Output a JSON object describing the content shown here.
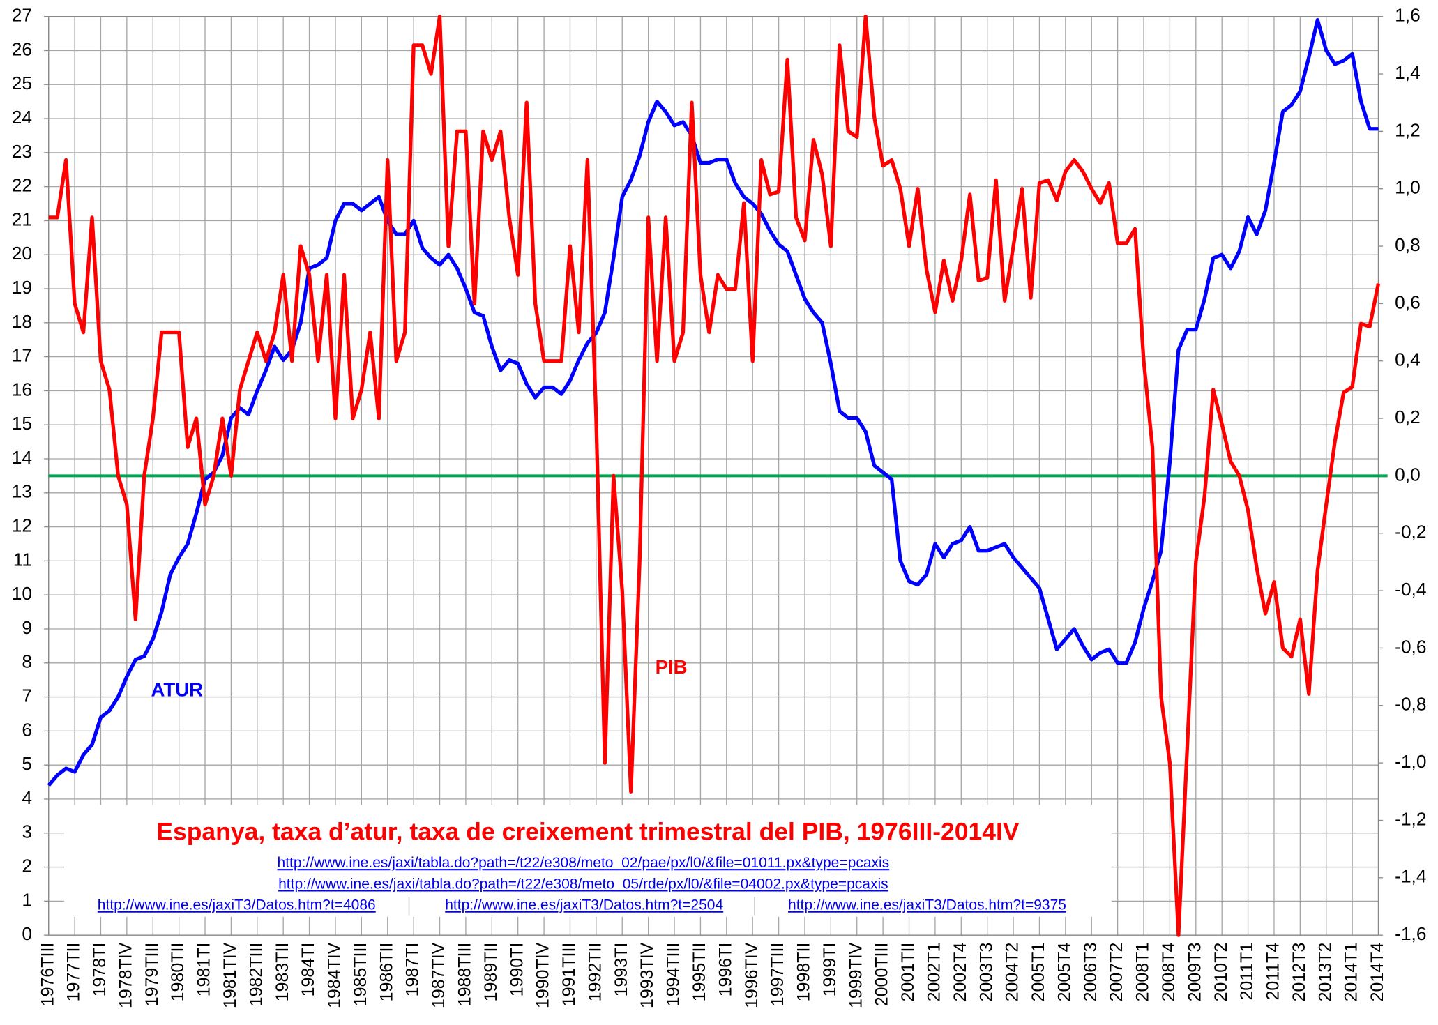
{
  "chart_data": {
    "type": "line",
    "title": "Espanya, taxa d’atur, taxa de creixement trimestral del PIB, 1976III-2014IV",
    "sources": [
      "http://www.ine.es/jaxi/tabla.do?path=/t22/e308/meto_02/pae/px/l0/&file=01011.px&type=pcaxis",
      "http://www.ine.es/jaxi/tabla.do?path=/t22/e308/meto_05/rde/px/l0/&file=04002.px&type=pcaxis",
      "http://www.ine.es/jaxiT3/Datos.htm?t=4086",
      "http://www.ine.es/jaxiT3/Datos.htm?t=2504",
      "http://www.ine.es/jaxiT3/Datos.htm?t=9375"
    ],
    "annotations": [
      {
        "text": "ATUR",
        "series": 0
      },
      {
        "text": "PIB",
        "series": 1
      }
    ],
    "categories": [
      "1976TIII",
      null,
      null,
      "1977TII",
      null,
      null,
      "1978TI",
      null,
      null,
      "1978TIV",
      null,
      null,
      "1979TIII",
      null,
      null,
      "1980TII",
      null,
      null,
      "1981TI",
      null,
      null,
      "1981TIV",
      null,
      null,
      "1982TIII",
      null,
      null,
      "1983TII",
      null,
      null,
      "1984TI",
      null,
      null,
      "1984TIV",
      null,
      null,
      "1985TIII",
      null,
      null,
      "1986TII",
      null,
      null,
      "1987TI",
      null,
      null,
      "1987TIV",
      null,
      null,
      "1988TIII",
      null,
      null,
      "1989TII",
      null,
      null,
      "1990TI",
      null,
      null,
      "1990TIV",
      null,
      null,
      "1991TIII",
      null,
      null,
      "1992TII",
      null,
      null,
      "1993TI",
      null,
      null,
      "1993TIV",
      null,
      null,
      "1994TIII",
      null,
      null,
      "1995TII",
      null,
      null,
      "1996TI",
      null,
      null,
      "1996TIV",
      null,
      null,
      "1997TIII",
      null,
      null,
      "1998TII",
      null,
      null,
      "1999TI",
      null,
      null,
      "1999TIV",
      null,
      null,
      "2000TIII",
      null,
      null,
      "2001TII",
      null,
      null,
      "2002T1",
      null,
      null,
      "2002T4",
      null,
      null,
      "2003T3",
      null,
      null,
      "2004T2",
      null,
      null,
      "2005T1",
      null,
      null,
      "2005T4",
      null,
      null,
      "2006T3",
      null,
      null,
      "2007T2",
      null,
      null,
      "2008T1",
      null,
      null,
      "2008T4",
      null,
      null,
      "2009T3",
      null,
      null,
      "2010T2",
      null,
      null,
      "2011T1",
      null,
      null,
      "2011T4",
      null,
      null,
      "2012T3",
      null,
      null,
      "2013T2",
      null,
      null,
      "2014T1",
      null,
      null,
      "2014T4"
    ],
    "series": [
      {
        "name": "ATUR",
        "color": "#0000ff",
        "axis": "y",
        "values": [
          4.4,
          4.7,
          4.9,
          4.8,
          5.3,
          5.6,
          6.4,
          6.6,
          7.0,
          7.6,
          8.1,
          8.2,
          8.7,
          9.5,
          10.6,
          11.1,
          11.5,
          12.4,
          13.4,
          13.6,
          14.1,
          15.2,
          15.5,
          15.3,
          16.0,
          16.6,
          17.3,
          16.9,
          17.2,
          18.0,
          19.6,
          19.7,
          19.9,
          21.0,
          21.5,
          21.5,
          21.3,
          21.5,
          21.7,
          21.0,
          20.6,
          20.6,
          21.0,
          20.2,
          19.9,
          19.7,
          20.0,
          19.6,
          19.0,
          18.3,
          18.2,
          17.3,
          16.6,
          16.9,
          16.8,
          16.2,
          15.8,
          16.1,
          16.1,
          15.9,
          16.3,
          16.9,
          17.4,
          17.7,
          18.3,
          19.9,
          21.7,
          22.2,
          22.9,
          23.9,
          24.5,
          24.2,
          23.8,
          23.9,
          23.5,
          22.7,
          22.7,
          22.8,
          22.8,
          22.1,
          21.7,
          21.5,
          21.2,
          20.7,
          20.3,
          20.1,
          19.4,
          18.7,
          18.3,
          18.0,
          16.8,
          15.4,
          15.2,
          15.2,
          14.8,
          13.8,
          13.6,
          13.4,
          11.0,
          10.4,
          10.3,
          10.6,
          11.5,
          11.1,
          11.5,
          11.6,
          12.0,
          11.3,
          11.3,
          11.4,
          11.5,
          11.1,
          10.8,
          10.5,
          10.2,
          9.3,
          8.4,
          8.7,
          9.0,
          8.5,
          8.1,
          8.3,
          8.4,
          8.0,
          8.0,
          8.6,
          9.6,
          10.4,
          11.3,
          13.9,
          17.2,
          17.8,
          17.8,
          18.7,
          19.9,
          20.0,
          19.6,
          20.1,
          21.1,
          20.6,
          21.3,
          22.7,
          24.2,
          24.4,
          24.8,
          25.8,
          26.9,
          26.0,
          25.6,
          25.7,
          25.9,
          24.5,
          23.7,
          23.7
        ]
      },
      {
        "name": "PIB",
        "color": "#ff0000",
        "axis": "y2",
        "values": [
          0.9,
          0.9,
          1.1,
          0.6,
          0.5,
          0.9,
          0.4,
          0.3,
          0.0,
          -0.1,
          -0.5,
          0.0,
          0.2,
          0.5,
          0.5,
          0.5,
          0.1,
          0.2,
          -0.1,
          0.0,
          0.2,
          0.0,
          0.3,
          0.4,
          0.5,
          0.4,
          0.5,
          0.7,
          0.4,
          0.8,
          0.7,
          0.4,
          0.7,
          0.2,
          0.7,
          0.2,
          0.3,
          0.5,
          0.2,
          1.1,
          0.4,
          0.5,
          1.5,
          1.5,
          1.4,
          1.6,
          0.8,
          1.2,
          1.2,
          0.6,
          1.2,
          1.1,
          1.2,
          0.9,
          0.7,
          1.3,
          0.6,
          0.4,
          0.4,
          0.4,
          0.8,
          0.5,
          1.1,
          0.2,
          -1.0,
          0.0,
          -0.4,
          -1.1,
          -0.3,
          0.9,
          0.4,
          0.9,
          0.4,
          0.5,
          1.3,
          0.7,
          0.5,
          0.7,
          0.65,
          0.65,
          0.95,
          0.4,
          1.1,
          0.98,
          0.99,
          1.45,
          0.9,
          0.82,
          1.17,
          1.05,
          0.8,
          1.5,
          1.2,
          1.18,
          1.6,
          1.25,
          1.08,
          1.1,
          1.0,
          0.8,
          1.0,
          0.72,
          0.57,
          0.75,
          0.61,
          0.75,
          0.98,
          0.68,
          0.69,
          1.03,
          0.61,
          0.8,
          1.0,
          0.62,
          1.02,
          1.03,
          0.96,
          1.06,
          1.1,
          1.06,
          1.0,
          0.95,
          1.02,
          0.81,
          0.81,
          0.86,
          0.4,
          0.1,
          -0.77,
          -1.0,
          -1.6,
          -0.95,
          -0.3,
          -0.07,
          0.3,
          0.18,
          0.05,
          0.0,
          -0.12,
          -0.32,
          -0.48,
          -0.37,
          -0.6,
          -0.63,
          -0.5,
          -0.76,
          -0.33,
          -0.1,
          0.12,
          0.29,
          0.31,
          0.53,
          0.52,
          0.67
        ]
      }
    ],
    "ylim": [
      0,
      27
    ],
    "yticks": [
      0,
      1,
      2,
      3,
      4,
      5,
      6,
      7,
      8,
      9,
      10,
      11,
      12,
      13,
      14,
      15,
      16,
      17,
      18,
      19,
      20,
      21,
      22,
      23,
      24,
      25,
      26,
      27
    ],
    "y2lim": [
      -1.6,
      1.6
    ],
    "y2ticks": [
      {
        "value": -1.6,
        "label": "-1,6"
      },
      {
        "value": -1.4,
        "label": "-1,4"
      },
      {
        "value": -1.2,
        "label": "-1,2"
      },
      {
        "value": -1.0,
        "label": "-1,0"
      },
      {
        "value": -0.8,
        "label": "-0,8"
      },
      {
        "value": -0.6,
        "label": "-0,6"
      },
      {
        "value": -0.4,
        "label": "-0,4"
      },
      {
        "value": -0.2,
        "label": "-0,2"
      },
      {
        "value": 0,
        "label": "0,0"
      },
      {
        "value": 0.2,
        "label": "0,2"
      },
      {
        "value": 0.4,
        "label": "0,4"
      },
      {
        "value": 0.6,
        "label": "0,6"
      },
      {
        "value": 0.8,
        "label": "0,8"
      },
      {
        "value": 1.0,
        "label": "1,0"
      },
      {
        "value": 1.2,
        "label": "1,2"
      },
      {
        "value": 1.4,
        "label": "1,4"
      },
      {
        "value": 1.6,
        "label": "1,6"
      }
    ],
    "grid": true,
    "y2_zero_line_color": "#00a651"
  }
}
